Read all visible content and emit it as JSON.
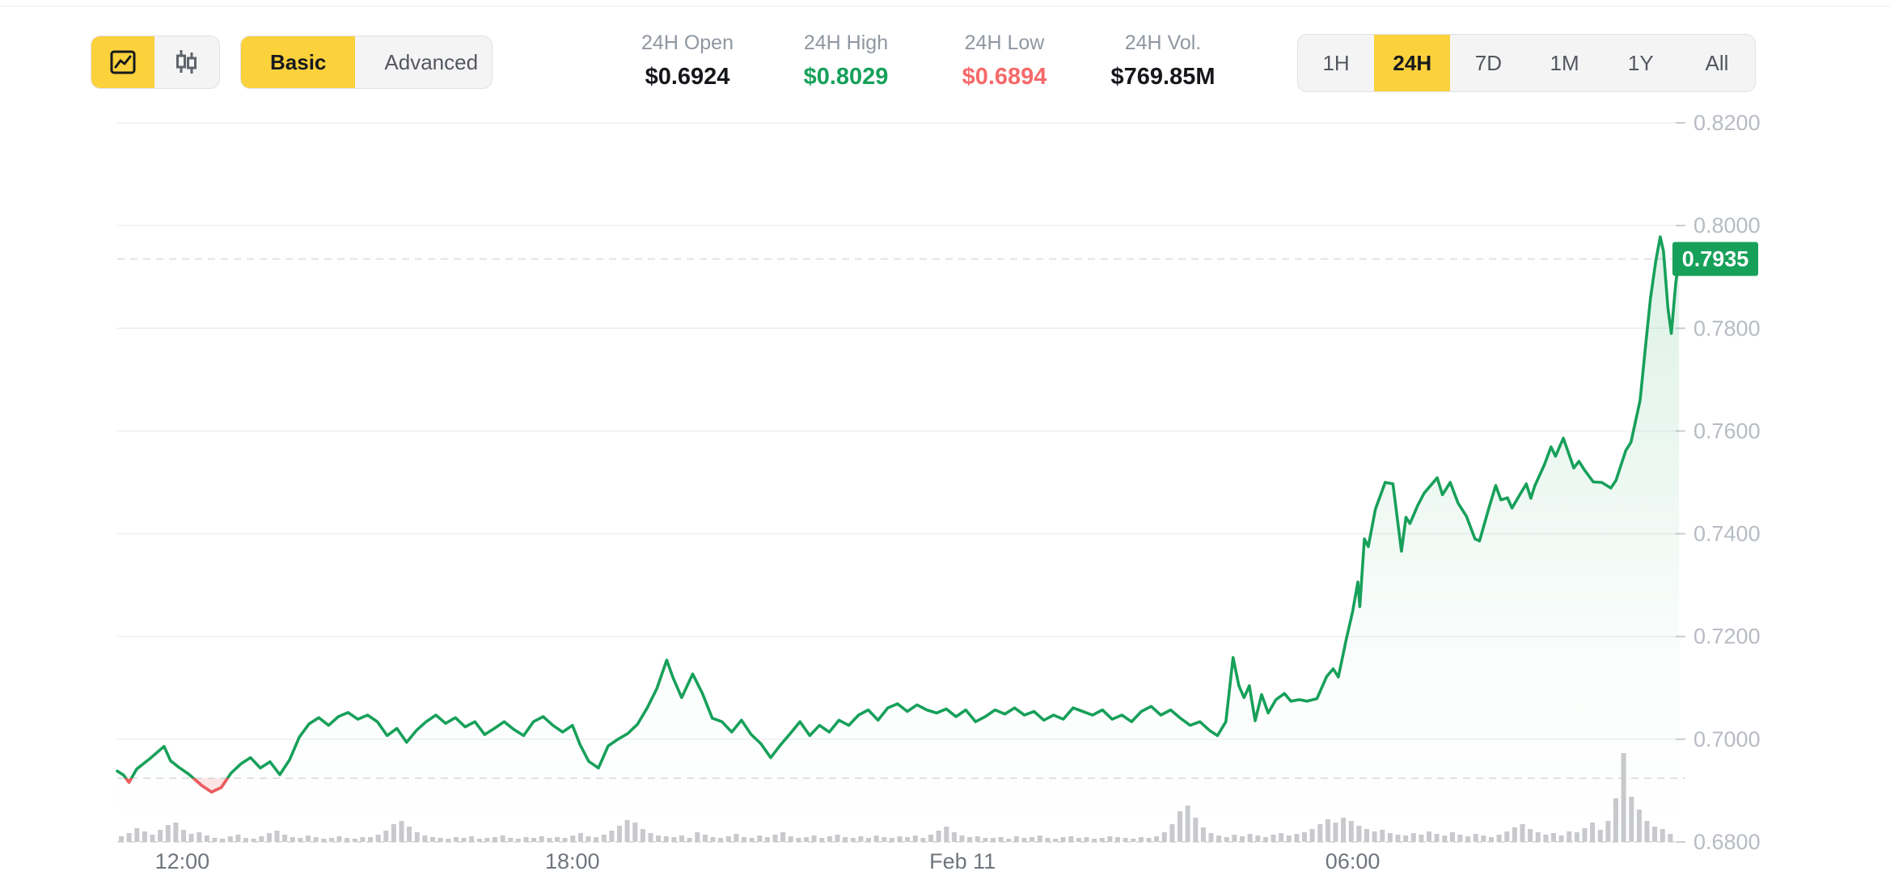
{
  "toolbar": {
    "chart_types": [
      {
        "name": "line",
        "icon": "line-chart-icon",
        "active": true
      },
      {
        "name": "candlestick",
        "icon": "candlestick-icon",
        "active": false
      }
    ],
    "style_toggle": {
      "basic_label": "Basic",
      "advanced_label": "Advanced",
      "active": "Basic"
    },
    "stats": [
      {
        "label": "24H Open",
        "value": "$0.6924",
        "color": "#15171B"
      },
      {
        "label": "24H High",
        "value": "$0.8029",
        "color": "#17A05A"
      },
      {
        "label": "24H Low",
        "value": "$0.6894",
        "color": "#F56A6A"
      },
      {
        "label": "24H Vol.",
        "value": "$769.85M",
        "color": "#15171B"
      }
    ],
    "ranges": [
      {
        "label": "1H",
        "active": false
      },
      {
        "label": "24H",
        "active": true
      },
      {
        "label": "7D",
        "active": false
      },
      {
        "label": "1M",
        "active": false
      },
      {
        "label": "1Y",
        "active": false
      },
      {
        "label": "All",
        "active": false
      }
    ]
  },
  "colors": {
    "accent_yellow": "#FBD13C",
    "green": "#17A05A",
    "green_fill": "rgba(23,160,90,0.15)",
    "red": "#F15B60",
    "red_fill": "rgba(241,91,96,0.16)",
    "grid": "#EEEFF1",
    "grid_dashed_bottom": "#D4D7DA",
    "ref_dashed": "#D7DADD",
    "tick_mark": "#C9CDD2",
    "volume_bar": "#C7C9CC",
    "price_label_bg": "#17A05A",
    "price_label_text": "#FFFFFF"
  },
  "chart_data": {
    "type": "line",
    "title": "24H price line chart with volume",
    "legend_position": "none",
    "grid": true,
    "ylim": [
      0.68,
      0.82
    ],
    "x_range_hours": 24.02,
    "open_price": 0.6924,
    "last_price": 0.7935,
    "last_price_label": "0.7935",
    "yticks": [
      {
        "label": "0.8200",
        "value": 0.82
      },
      {
        "label": "0.8000",
        "value": 0.8
      },
      {
        "label": "0.7800",
        "value": 0.78
      },
      {
        "label": "0.7600",
        "value": 0.76
      },
      {
        "label": "0.7400",
        "value": 0.74
      },
      {
        "label": "0.7200",
        "value": 0.72
      },
      {
        "label": "0.7000",
        "value": 0.7
      },
      {
        "label": "0.6800",
        "value": 0.68
      }
    ],
    "xticks": [
      {
        "label": "12:00",
        "t": 1
      },
      {
        "label": "18:00",
        "t": 7
      },
      {
        "label": "Feb 11",
        "t": 13
      },
      {
        "label": "06:00",
        "t": 19
      }
    ],
    "series": [
      [
        0,
        0.6938
      ],
      [
        0.1,
        0.693
      ],
      [
        0.18,
        0.6916
      ],
      [
        0.3,
        0.6942
      ],
      [
        0.5,
        0.6962
      ],
      [
        0.72,
        0.6986
      ],
      [
        0.82,
        0.6958
      ],
      [
        0.95,
        0.6945
      ],
      [
        1.1,
        0.6932
      ],
      [
        1.3,
        0.691
      ],
      [
        1.45,
        0.6897
      ],
      [
        1.6,
        0.6906
      ],
      [
        1.75,
        0.6934
      ],
      [
        1.9,
        0.6952
      ],
      [
        2.05,
        0.6964
      ],
      [
        2.2,
        0.6944
      ],
      [
        2.35,
        0.6956
      ],
      [
        2.5,
        0.6931
      ],
      [
        2.65,
        0.696
      ],
      [
        2.8,
        0.7004
      ],
      [
        2.95,
        0.703
      ],
      [
        3.1,
        0.7042
      ],
      [
        3.25,
        0.7027
      ],
      [
        3.4,
        0.7044
      ],
      [
        3.55,
        0.7052
      ],
      [
        3.7,
        0.7039
      ],
      [
        3.85,
        0.7047
      ],
      [
        4,
        0.7034
      ],
      [
        4.15,
        0.7007
      ],
      [
        4.3,
        0.7021
      ],
      [
        4.45,
        0.6994
      ],
      [
        4.6,
        0.7017
      ],
      [
        4.75,
        0.7034
      ],
      [
        4.9,
        0.7047
      ],
      [
        5.05,
        0.7031
      ],
      [
        5.2,
        0.7042
      ],
      [
        5.35,
        0.7024
      ],
      [
        5.5,
        0.7034
      ],
      [
        5.65,
        0.7009
      ],
      [
        5.8,
        0.7021
      ],
      [
        5.95,
        0.7034
      ],
      [
        6.1,
        0.7019
      ],
      [
        6.25,
        0.7007
      ],
      [
        6.4,
        0.7034
      ],
      [
        6.55,
        0.7044
      ],
      [
        6.7,
        0.7027
      ],
      [
        6.85,
        0.7014
      ],
      [
        7,
        0.7027
      ],
      [
        7.12,
        0.6989
      ],
      [
        7.25,
        0.6957
      ],
      [
        7.4,
        0.6944
      ],
      [
        7.55,
        0.6987
      ],
      [
        7.7,
        0.7
      ],
      [
        7.85,
        0.7011
      ],
      [
        8,
        0.7029
      ],
      [
        8.15,
        0.7061
      ],
      [
        8.3,
        0.7099
      ],
      [
        8.45,
        0.7154
      ],
      [
        8.55,
        0.7119
      ],
      [
        8.68,
        0.7081
      ],
      [
        8.85,
        0.7127
      ],
      [
        9,
        0.7089
      ],
      [
        9.15,
        0.7041
      ],
      [
        9.3,
        0.7034
      ],
      [
        9.45,
        0.7014
      ],
      [
        9.6,
        0.7037
      ],
      [
        9.75,
        0.7009
      ],
      [
        9.9,
        0.6991
      ],
      [
        10.05,
        0.6964
      ],
      [
        10.2,
        0.6989
      ],
      [
        10.35,
        0.7011
      ],
      [
        10.5,
        0.7034
      ],
      [
        10.65,
        0.7007
      ],
      [
        10.8,
        0.7027
      ],
      [
        10.95,
        0.7014
      ],
      [
        11.1,
        0.7037
      ],
      [
        11.25,
        0.7027
      ],
      [
        11.4,
        0.7047
      ],
      [
        11.55,
        0.7057
      ],
      [
        11.7,
        0.7037
      ],
      [
        11.85,
        0.7061
      ],
      [
        12,
        0.7069
      ],
      [
        12.15,
        0.7054
      ],
      [
        12.3,
        0.7067
      ],
      [
        12.45,
        0.7057
      ],
      [
        12.6,
        0.7051
      ],
      [
        12.75,
        0.7059
      ],
      [
        12.9,
        0.7044
      ],
      [
        13.05,
        0.7057
      ],
      [
        13.2,
        0.7034
      ],
      [
        13.35,
        0.7044
      ],
      [
        13.5,
        0.7057
      ],
      [
        13.65,
        0.7049
      ],
      [
        13.8,
        0.7061
      ],
      [
        13.95,
        0.7047
      ],
      [
        14.1,
        0.7054
      ],
      [
        14.25,
        0.7037
      ],
      [
        14.4,
        0.7047
      ],
      [
        14.55,
        0.7039
      ],
      [
        14.7,
        0.7061
      ],
      [
        14.85,
        0.7054
      ],
      [
        15,
        0.7047
      ],
      [
        15.15,
        0.7057
      ],
      [
        15.3,
        0.7039
      ],
      [
        15.45,
        0.7047
      ],
      [
        15.6,
        0.7034
      ],
      [
        15.75,
        0.7054
      ],
      [
        15.9,
        0.7064
      ],
      [
        16.05,
        0.7047
      ],
      [
        16.2,
        0.7057
      ],
      [
        16.35,
        0.7041
      ],
      [
        16.5,
        0.7027
      ],
      [
        16.65,
        0.7034
      ],
      [
        16.8,
        0.7017
      ],
      [
        16.92,
        0.7007
      ],
      [
        17.05,
        0.7034
      ],
      [
        17.16,
        0.7159
      ],
      [
        17.25,
        0.7104
      ],
      [
        17.33,
        0.7081
      ],
      [
        17.41,
        0.7104
      ],
      [
        17.5,
        0.7036
      ],
      [
        17.6,
        0.7087
      ],
      [
        17.7,
        0.7051
      ],
      [
        17.82,
        0.7077
      ],
      [
        17.95,
        0.7089
      ],
      [
        18.05,
        0.7074
      ],
      [
        18.18,
        0.7077
      ],
      [
        18.3,
        0.7074
      ],
      [
        18.45,
        0.7079
      ],
      [
        18.6,
        0.7122
      ],
      [
        18.7,
        0.7137
      ],
      [
        18.78,
        0.7121
      ],
      [
        18.9,
        0.7194
      ],
      [
        19,
        0.7249
      ],
      [
        19.08,
        0.7306
      ],
      [
        19.11,
        0.7258
      ],
      [
        19.18,
        0.739
      ],
      [
        19.24,
        0.7375
      ],
      [
        19.35,
        0.7448
      ],
      [
        19.5,
        0.75
      ],
      [
        19.62,
        0.7497
      ],
      [
        19.75,
        0.7366
      ],
      [
        19.82,
        0.7432
      ],
      [
        19.88,
        0.742
      ],
      [
        20,
        0.7455
      ],
      [
        20.1,
        0.7479
      ],
      [
        20.3,
        0.7509
      ],
      [
        20.38,
        0.7476
      ],
      [
        20.5,
        0.75
      ],
      [
        20.62,
        0.746
      ],
      [
        20.75,
        0.7434
      ],
      [
        20.88,
        0.739
      ],
      [
        20.95,
        0.7386
      ],
      [
        21.1,
        0.7452
      ],
      [
        21.2,
        0.7494
      ],
      [
        21.28,
        0.7466
      ],
      [
        21.38,
        0.747
      ],
      [
        21.45,
        0.745
      ],
      [
        21.58,
        0.7478
      ],
      [
        21.67,
        0.7497
      ],
      [
        21.74,
        0.7469
      ],
      [
        21.8,
        0.7493
      ],
      [
        21.95,
        0.7535
      ],
      [
        22.05,
        0.7569
      ],
      [
        22.12,
        0.7551
      ],
      [
        22.24,
        0.7586
      ],
      [
        22.4,
        0.7528
      ],
      [
        22.48,
        0.7541
      ],
      [
        22.56,
        0.7525
      ],
      [
        22.7,
        0.7501
      ],
      [
        22.83,
        0.75
      ],
      [
        22.97,
        0.7489
      ],
      [
        23.05,
        0.7504
      ],
      [
        23.2,
        0.7562
      ],
      [
        23.28,
        0.7578
      ],
      [
        23.42,
        0.766
      ],
      [
        23.5,
        0.776
      ],
      [
        23.58,
        0.7858
      ],
      [
        23.66,
        0.793
      ],
      [
        23.73,
        0.7978
      ],
      [
        23.78,
        0.795
      ],
      [
        23.85,
        0.7838
      ],
      [
        23.9,
        0.779
      ],
      [
        23.97,
        0.789
      ],
      [
        24.02,
        0.7935
      ]
    ],
    "volume": [
      7,
      11,
      17,
      13,
      9,
      15,
      21,
      24,
      15,
      10,
      12,
      8,
      5,
      4,
      7,
      9,
      5,
      4,
      7,
      11,
      14,
      9,
      6,
      5,
      8,
      6,
      4,
      5,
      7,
      5,
      4,
      6,
      6,
      9,
      14,
      22,
      26,
      19,
      12,
      8,
      6,
      5,
      4,
      6,
      5,
      7,
      4,
      5,
      6,
      8,
      5,
      4,
      6,
      5,
      7,
      5,
      6,
      5,
      8,
      11,
      7,
      6,
      9,
      14,
      20,
      27,
      24,
      16,
      11,
      8,
      7,
      6,
      8,
      5,
      12,
      9,
      6,
      5,
      7,
      10,
      6,
      5,
      8,
      6,
      9,
      12,
      7,
      5,
      6,
      8,
      5,
      7,
      9,
      6,
      5,
      7,
      5,
      8,
      6,
      5,
      7,
      6,
      8,
      5,
      9,
      14,
      19,
      12,
      8,
      6,
      7,
      5,
      5,
      6,
      4,
      7,
      5,
      6,
      8,
      5,
      4,
      6,
      7,
      5,
      6,
      4,
      5,
      7,
      6,
      5,
      4,
      6,
      5,
      7,
      12,
      22,
      38,
      45,
      30,
      18,
      11,
      8,
      6,
      9,
      7,
      10,
      8,
      6,
      9,
      11,
      8,
      10,
      12,
      16,
      22,
      28,
      24,
      30,
      26,
      20,
      16,
      13,
      15,
      11,
      9,
      8,
      11,
      9,
      13,
      10,
      8,
      12,
      9,
      7,
      10,
      8,
      6,
      9,
      13,
      18,
      22,
      16,
      12,
      9,
      11,
      8,
      13,
      12,
      17,
      24,
      15,
      26,
      54,
      110,
      56,
      40,
      26,
      19,
      16,
      10
    ]
  }
}
